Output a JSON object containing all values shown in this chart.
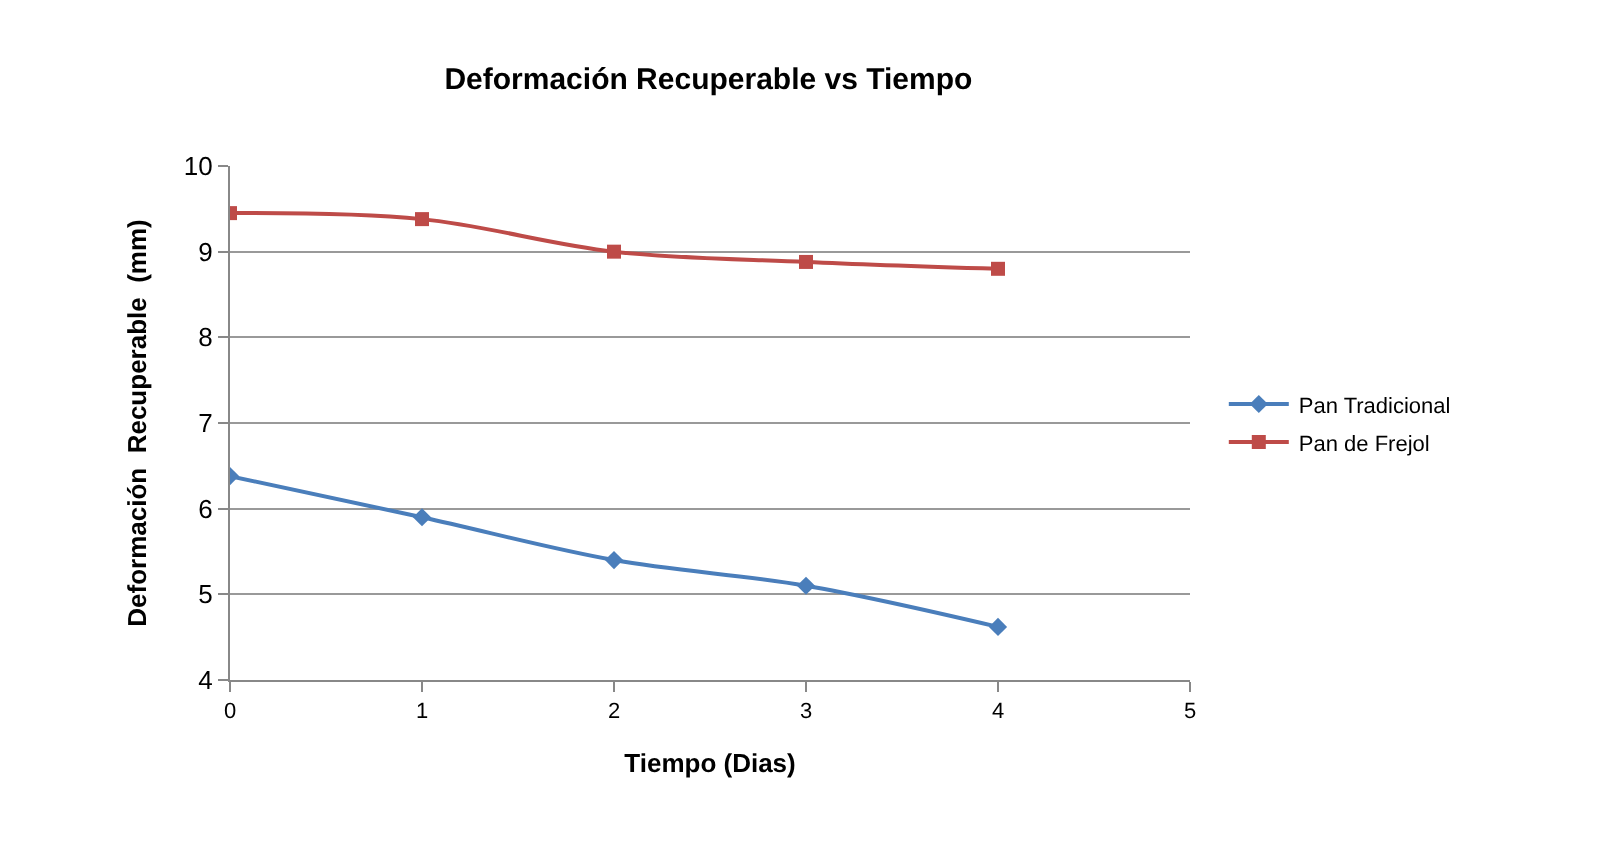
{
  "chart_data": {
    "type": "line",
    "title": "Deformación Recuperable vs Tiempo",
    "xlabel": "Tiempo (Dias)",
    "ylabel": "Deformación  Recuperable  (mm)",
    "x": [
      0,
      1,
      2,
      3,
      4
    ],
    "series": [
      {
        "name": "Pan Tradicional",
        "color": "#4a7ebb",
        "values": [
          6.38,
          5.9,
          5.4,
          5.1,
          4.62
        ],
        "marker": "diamond"
      },
      {
        "name": "Pan de Frejol",
        "color": "#be4b48",
        "values": [
          9.45,
          9.38,
          9.0,
          8.88,
          8.8
        ],
        "marker": "square"
      }
    ],
    "xlim": [
      0,
      5
    ],
    "xticks": [
      0,
      1,
      2,
      3,
      4,
      5
    ],
    "ylim": [
      4,
      10
    ],
    "yticks": [
      4,
      5,
      6,
      7,
      8,
      9,
      10
    ],
    "grid": "y",
    "legend": "right",
    "line_style": "solid"
  }
}
